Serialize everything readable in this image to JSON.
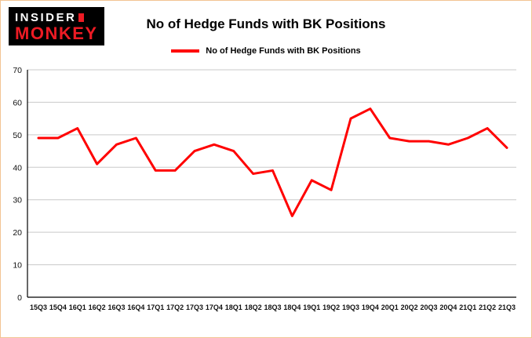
{
  "header": {
    "logo": {
      "line1": "INSIDER",
      "line2": "MONKEY"
    },
    "title": "No of Hedge Funds with BK Positions"
  },
  "legend": {
    "label": "No of Hedge Funds with BK Positions",
    "color": "#ff0000"
  },
  "chart_data": {
    "type": "line",
    "title": "No of Hedge Funds with BK Positions",
    "categories": [
      "15Q3",
      "15Q4",
      "16Q1",
      "16Q2",
      "16Q3",
      "16Q4",
      "17Q1",
      "17Q2",
      "17Q3",
      "17Q4",
      "18Q1",
      "18Q2",
      "18Q3",
      "18Q4",
      "19Q1",
      "19Q2",
      "19Q3",
      "19Q4",
      "20Q1",
      "20Q2",
      "20Q3",
      "20Q4",
      "21Q1",
      "21Q2",
      "21Q3"
    ],
    "values": [
      49,
      49,
      52,
      41,
      47,
      49,
      39,
      39,
      45,
      47,
      45,
      38,
      39,
      25,
      36,
      33,
      55,
      58,
      49,
      48,
      48,
      47,
      49,
      52,
      46
    ],
    "xlabel": "",
    "ylabel": "",
    "ylim": [
      0,
      70
    ],
    "yticks": [
      0,
      10,
      20,
      30,
      40,
      50,
      60,
      70
    ],
    "grid": true,
    "grid_color": "#c9c9c9",
    "line_color": "#ff0000",
    "legend_position": "top"
  }
}
